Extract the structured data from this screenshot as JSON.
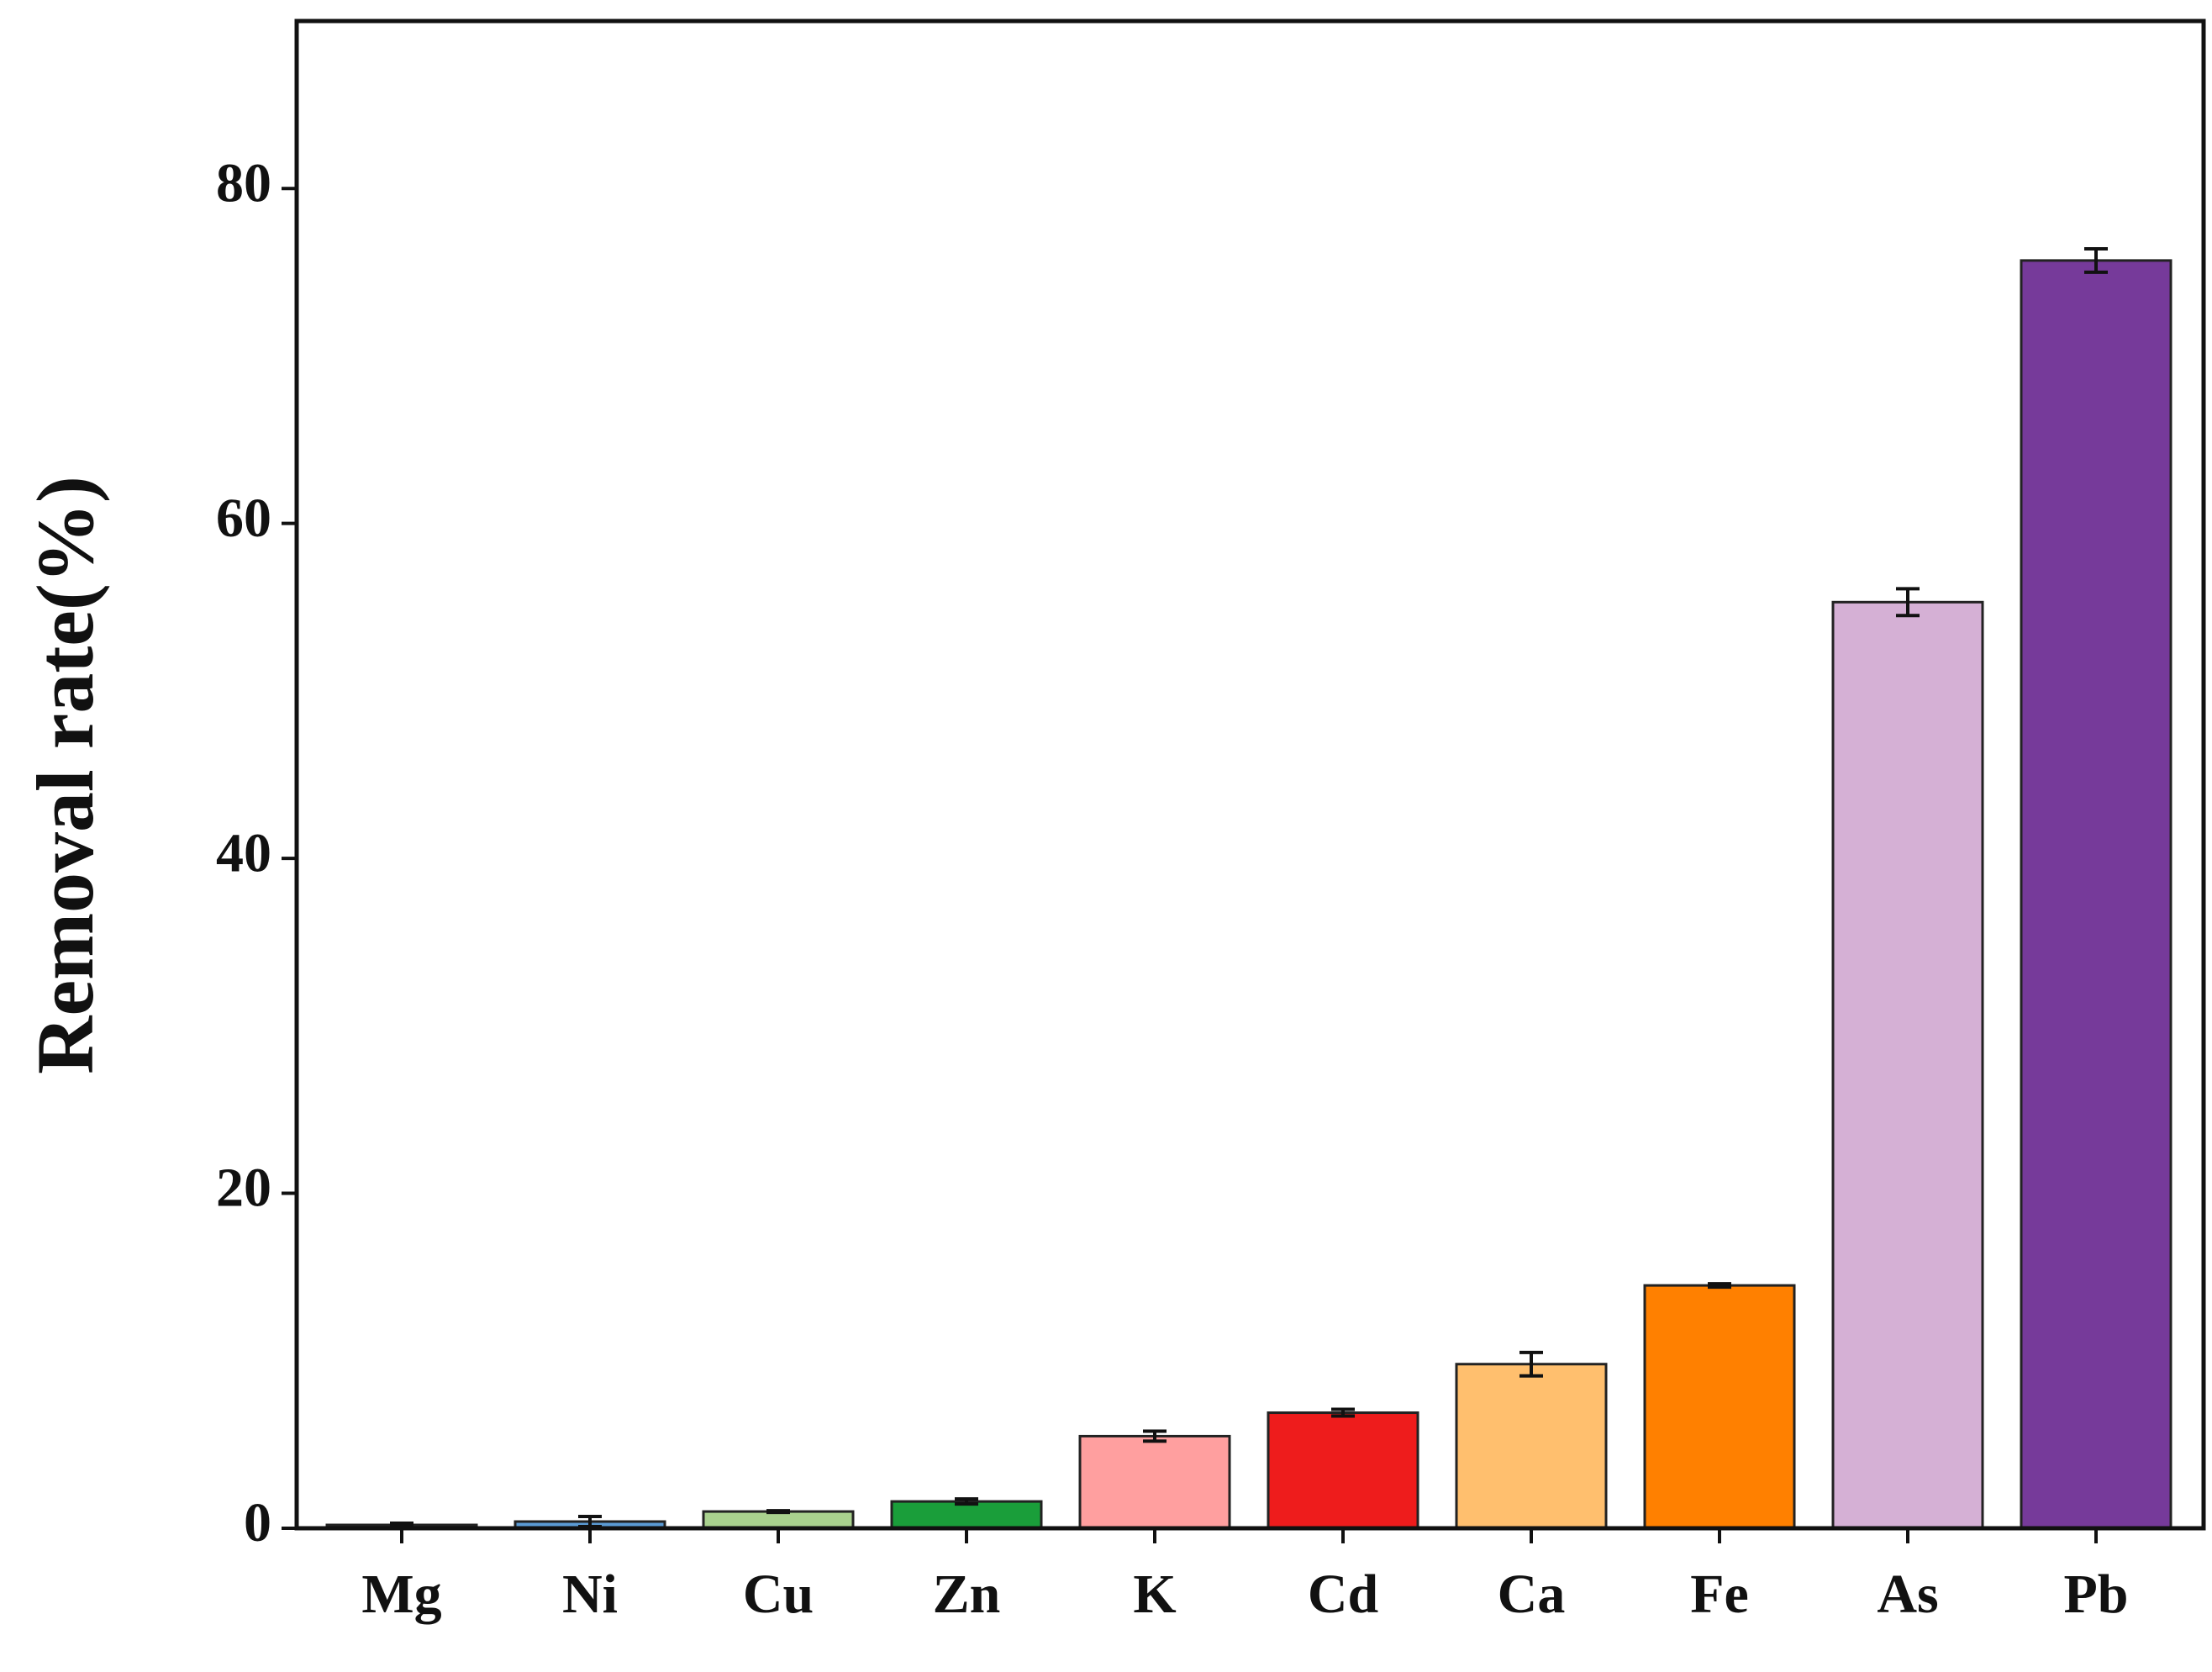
{
  "chart_data": {
    "type": "bar",
    "y_label": "Removal rate(%)",
    "categories": [
      "Mg",
      "Ni",
      "Cu",
      "Zn",
      "K",
      "Cd",
      "Ca",
      "Fe",
      "As",
      "Pb"
    ],
    "values": [
      0.2,
      0.4,
      1.0,
      1.6,
      5.5,
      6.9,
      9.8,
      14.5,
      55.3,
      75.7
    ],
    "errors": [
      0.1,
      0.3,
      0.05,
      0.15,
      0.3,
      0.2,
      0.7,
      0.1,
      0.8,
      0.7
    ],
    "colors": [
      "#9a9a9a",
      "#5b9bd5",
      "#a9d18e",
      "#1a9e3a",
      "#ff9f9f",
      "#ee1c1c",
      "#ffbf6e",
      "#ff8000",
      "#d5b0d5",
      "#763a9a"
    ],
    "ylim": [
      0,
      90
    ],
    "yticks": [
      0,
      20,
      40,
      60,
      80
    ]
  }
}
